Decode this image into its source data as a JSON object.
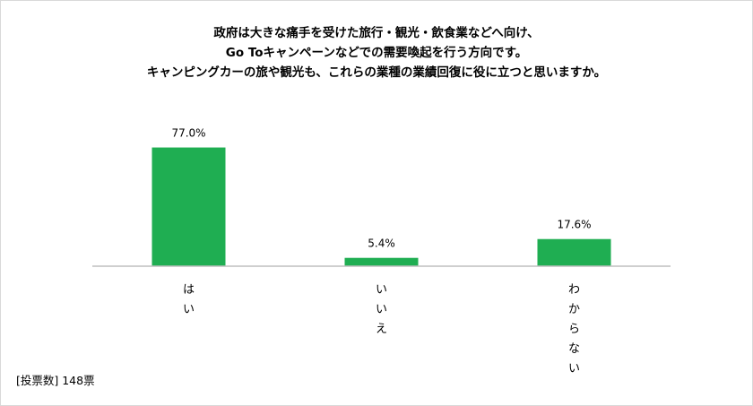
{
  "title_lines": [
    "政府は大きな痛手を受けた旅行・観光・飲食業などへ向け、",
    "Go Toキャンペーンなどでの需要喚起を行う方向です。",
    "キャンピングカーの旅や観光も、これらの業種の業績回復に役に立つと思いますか。"
  ],
  "footnote": "[投票数] 148票",
  "chart_data": {
    "type": "bar",
    "categories": [
      "はい",
      "いいえ",
      "わからない"
    ],
    "values": [
      77.0,
      5.4,
      17.6
    ],
    "data_labels": [
      "77.0%",
      "5.4%",
      "17.6%"
    ],
    "ylim": [
      0,
      100
    ],
    "grid": false,
    "legend": "none",
    "bar_color": "#1fae52",
    "axis_color": "#bfbfbf"
  }
}
